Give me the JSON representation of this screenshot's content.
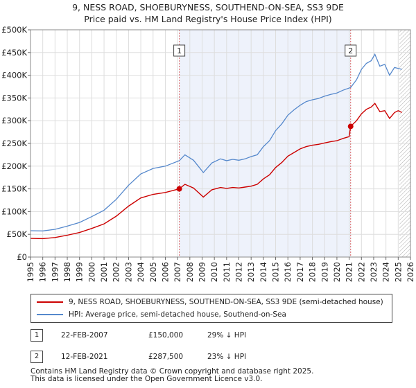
{
  "title": "9, NESS ROAD, SHOEBURYNESS, SOUTHEND-ON-SEA, SS3 9DE",
  "subtitle": "Price paid vs. HM Land Registry's House Price Index (HPI)",
  "colors": {
    "red": "#cc0000",
    "blue": "#5588cc",
    "shade": "#eef2fb",
    "hatch": "#aaaaaa"
  },
  "chart_data": {
    "type": "line",
    "y_tick_labels": [
      "£0",
      "£50K",
      "£100K",
      "£150K",
      "£200K",
      "£250K",
      "£300K",
      "£350K",
      "£400K",
      "£450K",
      "£500K"
    ],
    "ylim": [
      0,
      500000
    ],
    "xlim": [
      1995,
      2026
    ],
    "x_tick_labels": [
      "1995",
      "1996",
      "1997",
      "1998",
      "1999",
      "2000",
      "2001",
      "2002",
      "2003",
      "2004",
      "2005",
      "2006",
      "2007",
      "2008",
      "2009",
      "2010",
      "2011",
      "2012",
      "2013",
      "2014",
      "2015",
      "2016",
      "2017",
      "2018",
      "2019",
      "2020",
      "2021",
      "2022",
      "2023",
      "2024",
      "2025",
      "2026"
    ],
    "shaded_range": [
      2007.14,
      2021.12
    ],
    "hatched_from": 2025.1,
    "series": [
      {
        "name": "9, NESS ROAD, SHOEBURYNESS, SOUTHEND-ON-SEA, SS3 9DE (semi-detached house)",
        "color": "#cc0000",
        "x": [
          1995,
          1996,
          1997,
          1998,
          1999,
          2000,
          2001,
          2002,
          2003,
          2004,
          2005,
          2006,
          2007.14,
          2007.6,
          2008.3,
          2009.1,
          2009.8,
          2010.5,
          2011,
          2011.5,
          2012,
          2012.5,
          2013,
          2013.5,
          2014,
          2014.5,
          2015,
          2015.5,
          2016,
          2016.5,
          2017,
          2017.5,
          2018,
          2018.5,
          2019,
          2019.5,
          2020,
          2020.5,
          2021.0,
          2021.12,
          2021.6,
          2022,
          2022.4,
          2022.8,
          2023.1,
          2023.5,
          2023.9,
          2024.3,
          2024.7,
          2025.0,
          2025.3
        ],
        "y": [
          41000,
          40500,
          43000,
          48000,
          54000,
          63000,
          73000,
          90000,
          112000,
          130000,
          138000,
          142000,
          150000,
          160000,
          152000,
          132000,
          148000,
          153000,
          151000,
          153000,
          152000,
          154000,
          156000,
          160000,
          172000,
          181000,
          197000,
          208000,
          222000,
          230000,
          238000,
          243000,
          246000,
          248000,
          251000,
          254000,
          256000,
          261000,
          265000,
          287500,
          300000,
          315000,
          325000,
          330000,
          338000,
          320000,
          322000,
          305000,
          318000,
          322000,
          318000
        ]
      },
      {
        "name": "HPI: Average price, semi-detached house, Southend-on-Sea",
        "color": "#5588cc",
        "x": [
          1995,
          1996,
          1997,
          1998,
          1999,
          2000,
          2001,
          2002,
          2003,
          2004,
          2005,
          2006,
          2007.14,
          2007.6,
          2008.3,
          2009.1,
          2009.8,
          2010.5,
          2011,
          2011.5,
          2012,
          2012.5,
          2013,
          2013.5,
          2014,
          2014.5,
          2015,
          2015.5,
          2016,
          2016.5,
          2017,
          2017.5,
          2018,
          2018.5,
          2019,
          2019.5,
          2020,
          2020.5,
          2021.12,
          2021.6,
          2022,
          2022.4,
          2022.8,
          2023.1,
          2023.5,
          2023.9,
          2024.3,
          2024.7,
          2025.0,
          2025.3
        ],
        "y": [
          58000,
          57500,
          61000,
          68000,
          76000,
          89000,
          103000,
          127000,
          158000,
          183000,
          195000,
          200000,
          212000,
          225000,
          213000,
          186000,
          207000,
          216000,
          212000,
          215000,
          213000,
          216000,
          221000,
          225000,
          243000,
          256000,
          278000,
          293000,
          312000,
          324000,
          334000,
          342000,
          346000,
          349000,
          354000,
          358000,
          361000,
          367000,
          373000,
          390000,
          413000,
          426000,
          432000,
          446000,
          420000,
          424000,
          400000,
          417000,
          415000,
          413000
        ]
      }
    ],
    "sales": [
      {
        "label": "1",
        "x": 2007.14,
        "y": 150000
      },
      {
        "label": "2",
        "x": 2021.12,
        "y": 287500
      }
    ]
  },
  "legend": {
    "red_label": "9, NESS ROAD, SHOEBURYNESS, SOUTHEND-ON-SEA, SS3 9DE (semi-detached house)",
    "blue_label": "HPI: Average price, semi-detached house, Southend-on-Sea"
  },
  "transactions": [
    {
      "num": "1",
      "date": "22-FEB-2007",
      "price": "£150,000",
      "hpi": "29% ↓ HPI"
    },
    {
      "num": "2",
      "date": "12-FEB-2021",
      "price": "£287,500",
      "hpi": "23% ↓ HPI"
    }
  ],
  "footer": {
    "line1": "Contains HM Land Registry data © Crown copyright and database right 2025.",
    "line2": "This data is licensed under the Open Government Licence v3.0."
  }
}
